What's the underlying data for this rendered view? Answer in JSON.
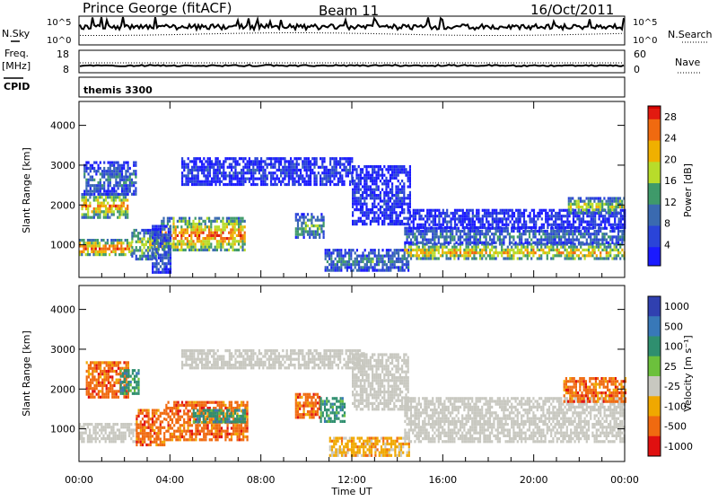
{
  "header": {
    "station": "Prince George (fitACF)",
    "beam": "Beam 11",
    "date": "16/Oct/2011"
  },
  "strips": {
    "nsky": {
      "label": "N.Sky",
      "ticks": [
        "10^5",
        "10^0"
      ]
    },
    "nsearch": {
      "label": "N.Search",
      "ticks": [
        "10^5",
        "10^0"
      ]
    },
    "freq": {
      "label_line1": "Freq.",
      "label_line2": "[MHz]",
      "ticks": [
        "18",
        "8"
      ]
    },
    "nave": {
      "label": "Nave",
      "ticks": [
        "60",
        "0"
      ]
    },
    "cpid": {
      "label": "CPID",
      "value": "themis 3300"
    }
  },
  "chart_data": [
    {
      "type": "heatmap",
      "name": "power",
      "ylabel": "Slant Range [km]",
      "xlabel": "Time UT",
      "x_ticks": [
        "00:00",
        "04:00",
        "08:00",
        "12:00",
        "16:00",
        "20:00",
        "00:00"
      ],
      "y_ticks": [
        "1000",
        "2000",
        "3000",
        "4000"
      ],
      "xlim_hours": [
        0,
        24
      ],
      "ylim_km": [
        180,
        4600
      ],
      "colorbar": {
        "label": "Power [dB]",
        "ticks": [
          "28",
          "24",
          "20",
          "16",
          "12",
          "8",
          "4"
        ],
        "range": [
          0,
          30
        ]
      },
      "regions": [
        {
          "t0": 0.0,
          "t1": 2.3,
          "r0": 750,
          "r1": 1150,
          "value": 26
        },
        {
          "t0": 0.1,
          "t1": 2.1,
          "r0": 1700,
          "r1": 2300,
          "value": 23
        },
        {
          "t0": 0.2,
          "t1": 2.5,
          "r0": 2300,
          "r1": 3100,
          "value": 10
        },
        {
          "t0": 2.3,
          "t1": 3.5,
          "r0": 650,
          "r1": 1400,
          "value": 18
        },
        {
          "t0": 3.6,
          "t1": 7.3,
          "r0": 850,
          "r1": 1700,
          "value": 25
        },
        {
          "t0": 3.2,
          "t1": 4.0,
          "r0": 300,
          "r1": 1500,
          "value": 9
        },
        {
          "t0": 4.5,
          "t1": 12.0,
          "r0": 2500,
          "r1": 3200,
          "value": 5
        },
        {
          "t0": 9.5,
          "t1": 10.8,
          "r0": 1200,
          "r1": 1800,
          "value": 14
        },
        {
          "t0": 10.8,
          "t1": 14.5,
          "r0": 350,
          "r1": 900,
          "value": 11
        },
        {
          "t0": 12.0,
          "t1": 14.6,
          "r0": 1500,
          "r1": 3000,
          "value": 4
        },
        {
          "t0": 14.3,
          "t1": 24.0,
          "r0": 650,
          "r1": 1050,
          "value": 22
        },
        {
          "t0": 14.3,
          "t1": 24.0,
          "r0": 1050,
          "r1": 1450,
          "value": 10
        },
        {
          "t0": 14.5,
          "t1": 24.0,
          "r0": 1450,
          "r1": 1900,
          "value": 4
        },
        {
          "t0": 21.5,
          "t1": 24.0,
          "r0": 1800,
          "r1": 2200,
          "value": 18
        }
      ]
    },
    {
      "type": "heatmap",
      "name": "velocity",
      "ylabel": "Slant Range [km]",
      "xlabel": "Time UT",
      "x_ticks": [
        "00:00",
        "04:00",
        "08:00",
        "12:00",
        "16:00",
        "20:00",
        "00:00"
      ],
      "y_ticks": [
        "1000",
        "2000",
        "3000",
        "4000"
      ],
      "xlim_hours": [
        0,
        24
      ],
      "ylim_km": [
        180,
        4600
      ],
      "colorbar": {
        "label": "Velocity [m s⁻¹]",
        "ticks": [
          "1000",
          "500",
          "100",
          "25",
          "-25",
          "-100",
          "-500",
          "-1000"
        ],
        "colors": [
          "#3040b0",
          "#3878b8",
          "#2f8f6f",
          "#6cc03c",
          "#c8c8c0",
          "#f0a800",
          "#f06a10",
          "#e01010"
        ]
      },
      "regions": [
        {
          "t0": 0.0,
          "t1": 2.5,
          "r0": 650,
          "r1": 1150,
          "value": "gs"
        },
        {
          "t0": 0.3,
          "t1": 2.2,
          "r0": 1800,
          "r1": 2700,
          "value": "-500"
        },
        {
          "t0": 1.8,
          "t1": 2.6,
          "r0": 1900,
          "r1": 2500,
          "value": "100"
        },
        {
          "t0": 2.5,
          "t1": 3.8,
          "r0": 600,
          "r1": 1500,
          "value": "-500"
        },
        {
          "t0": 3.8,
          "t1": 7.4,
          "r0": 700,
          "r1": 1700,
          "value": "-500"
        },
        {
          "t0": 5.0,
          "t1": 7.3,
          "r0": 1150,
          "r1": 1500,
          "value": "100"
        },
        {
          "t0": 4.5,
          "t1": 12.5,
          "r0": 2500,
          "r1": 3000,
          "value": "gs"
        },
        {
          "t0": 9.5,
          "t1": 10.6,
          "r0": 1300,
          "r1": 1900,
          "value": "-500"
        },
        {
          "t0": 10.6,
          "t1": 11.7,
          "r0": 1200,
          "r1": 1800,
          "value": "100"
        },
        {
          "t0": 11.0,
          "t1": 14.5,
          "r0": 350,
          "r1": 800,
          "value": "-100"
        },
        {
          "t0": 12.0,
          "t1": 14.5,
          "r0": 1500,
          "r1": 2900,
          "value": "gs"
        },
        {
          "t0": 14.3,
          "t1": 24.0,
          "r0": 700,
          "r1": 1800,
          "value": "gs"
        },
        {
          "t0": 21.3,
          "t1": 24.0,
          "r0": 1700,
          "r1": 2300,
          "value": "-500"
        }
      ]
    }
  ]
}
